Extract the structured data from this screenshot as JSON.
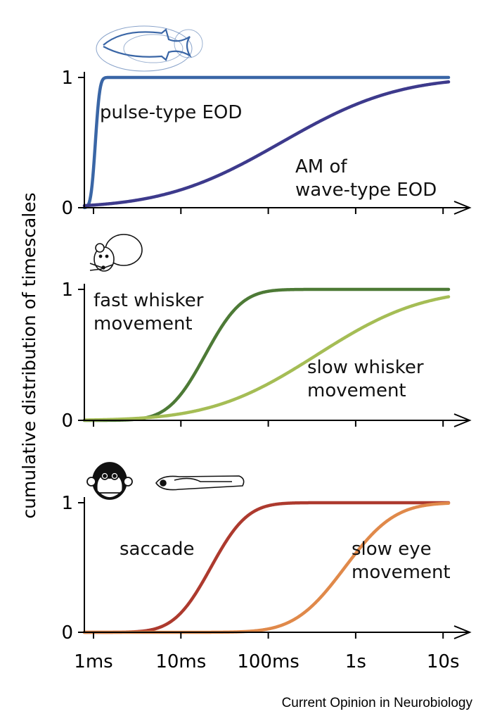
{
  "chart_data": {
    "type": "line",
    "ylabel": "cumulative distribution of timescales",
    "x_scale": "log",
    "xlim_s": [
      0.0008,
      15
    ],
    "x_ticks": [
      {
        "value_s": 0.001,
        "label": "1ms"
      },
      {
        "value_s": 0.01,
        "label": "10ms"
      },
      {
        "value_s": 0.1,
        "label": "100ms"
      },
      {
        "value_s": 1,
        "label": "1s"
      },
      {
        "value_s": 10,
        "label": "10s"
      }
    ],
    "y_ticks": [
      {
        "value": 0,
        "label": "0"
      },
      {
        "value": 1,
        "label": "1"
      }
    ],
    "ylim": [
      0,
      1
    ],
    "grid": false,
    "credit": "Current Opinion in Neurobiology",
    "panels": [
      {
        "icons": [
          "electric-fish-icon"
        ],
        "series": [
          {
            "name": "pulse-type EOD",
            "label_lines": [
              "pulse-type EOD"
            ],
            "color": "#3a66a6",
            "median_s": 0.00105,
            "sigma_decades": 0.04
          },
          {
            "name": "AM of wave-type EOD",
            "label_lines": [
              "AM of",
              "wave-type EOD"
            ],
            "color": "#3d3a8c",
            "median_s": 0.14,
            "sigma_decades": 1.05
          }
        ]
      },
      {
        "icons": [
          "mouse-icon"
        ],
        "series": [
          {
            "name": "fast whisker movement",
            "label_lines": [
              "fast whisker",
              "movement"
            ],
            "color": "#4d7a36",
            "median_s": 0.019,
            "sigma_decades": 0.33
          },
          {
            "name": "slow whisker movement",
            "label_lines": [
              "slow whisker",
              "movement"
            ],
            "color": "#a5bd55",
            "median_s": 0.36,
            "sigma_decades": 0.95
          }
        ]
      },
      {
        "icons": [
          "monkey-icon",
          "zebrafish-larva-icon"
        ],
        "series": [
          {
            "name": "saccade",
            "label_lines": [
              "saccade"
            ],
            "color": "#ad3a2e",
            "median_s": 0.022,
            "sigma_decades": 0.33
          },
          {
            "name": "slow eye movement",
            "label_lines": [
              "slow eye",
              "movement"
            ],
            "color": "#e0894a",
            "median_s": 0.75,
            "sigma_decades": 0.45
          }
        ]
      }
    ]
  }
}
